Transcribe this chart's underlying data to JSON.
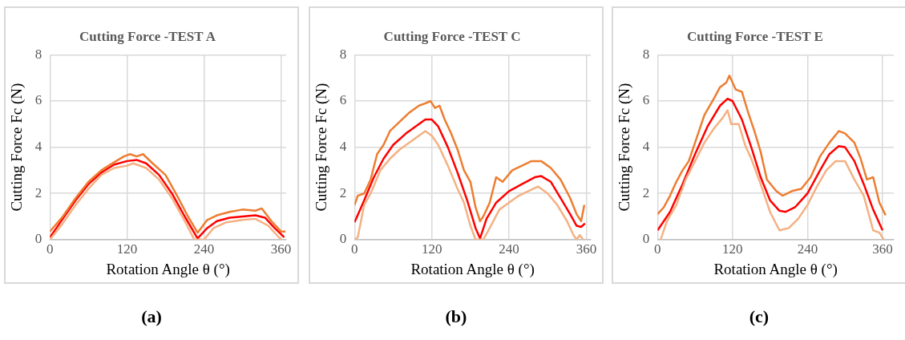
{
  "chart_data": [
    {
      "type": "line",
      "title": "Cutting Force -TEST A",
      "xlabel": "Rotation Angle θ (°)",
      "ylabel": "Cutting Force Fc (N)",
      "xlim": [
        0,
        368
      ],
      "xticks": [
        0,
        120,
        240,
        360
      ],
      "ylim": [
        0,
        8
      ],
      "yticks": [
        0,
        2,
        4,
        6,
        8
      ],
      "grid": true,
      "annotations": [
        "(a)"
      ],
      "series": [
        {
          "color": "#ed7d31",
          "x": [
            0,
            20,
            40,
            60,
            80,
            100,
            115,
            125,
            135,
            145,
            160,
            180,
            200,
            215,
            230,
            245,
            260,
            280,
            300,
            320,
            330,
            345,
            360,
            367
          ],
          "values": [
            0.35,
            1.0,
            1.8,
            2.5,
            3.0,
            3.35,
            3.6,
            3.7,
            3.6,
            3.7,
            3.3,
            2.8,
            1.8,
            1.0,
            0.3,
            0.85,
            1.05,
            1.2,
            1.3,
            1.25,
            1.35,
            0.8,
            0.35,
            0.35
          ]
        },
        {
          "color": "#f4b183",
          "x": [
            0,
            20,
            40,
            60,
            80,
            100,
            120,
            130,
            150,
            170,
            190,
            210,
            225,
            240,
            255,
            275,
            300,
            320,
            340,
            360
          ],
          "values": [
            0,
            0.7,
            1.5,
            2.2,
            2.8,
            3.1,
            3.2,
            3.3,
            3.1,
            2.6,
            1.8,
            0.8,
            0,
            0,
            0.5,
            0.75,
            0.85,
            0.9,
            0.6,
            0
          ]
        },
        {
          "color": "#ff0000",
          "x": [
            0,
            20,
            40,
            60,
            80,
            100,
            120,
            135,
            150,
            170,
            190,
            210,
            230,
            245,
            260,
            280,
            300,
            320,
            335,
            350,
            365
          ],
          "values": [
            0.1,
            0.9,
            1.7,
            2.4,
            2.9,
            3.25,
            3.4,
            3.45,
            3.3,
            2.8,
            2.0,
            1.0,
            0.05,
            0.5,
            0.8,
            0.95,
            1.0,
            1.05,
            0.95,
            0.5,
            0.1
          ]
        }
      ]
    },
    {
      "type": "line",
      "title": "Cutting Force -TEST C",
      "xlabel": "Rotation Angle θ (°)",
      "ylabel": "Cutting Force Fc (N)",
      "xlim": [
        0,
        367
      ],
      "xticks": [
        0,
        120,
        240,
        360
      ],
      "ylim": [
        0,
        8
      ],
      "yticks": [
        0,
        2,
        4,
        6,
        8
      ],
      "grid": true,
      "annotations": [
        "(b)"
      ],
      "series": [
        {
          "color": "#ed7d31",
          "x": [
            0,
            5,
            15,
            25,
            35,
            45,
            55,
            70,
            85,
            100,
            110,
            118,
            125,
            132,
            140,
            150,
            160,
            170,
            180,
            188,
            195,
            200,
            210,
            220,
            230,
            245,
            260,
            275,
            290,
            305,
            320,
            335,
            345,
            352,
            357
          ],
          "values": [
            1.5,
            1.9,
            2.0,
            2.6,
            3.7,
            4.1,
            4.7,
            5.1,
            5.5,
            5.8,
            5.9,
            6.0,
            5.7,
            5.8,
            5.2,
            4.6,
            3.9,
            3.0,
            2.5,
            1.4,
            0.8,
            1.0,
            1.6,
            2.7,
            2.5,
            3.0,
            3.2,
            3.4,
            3.4,
            3.1,
            2.6,
            1.8,
            1.1,
            0.8,
            1.5
          ]
        },
        {
          "color": "#f4b183",
          "x": [
            0,
            5,
            15,
            25,
            40,
            55,
            70,
            90,
            110,
            120,
            130,
            145,
            160,
            170,
            180,
            188,
            200,
            210,
            225,
            240,
            255,
            270,
            285,
            300,
            315,
            330,
            340,
            345,
            350,
            355
          ],
          "values": [
            0,
            0.1,
            1.5,
            2.0,
            3.0,
            3.5,
            3.9,
            4.3,
            4.7,
            4.5,
            4.1,
            3.2,
            2.2,
            1.6,
            0.6,
            0,
            0,
            0.5,
            1.3,
            1.6,
            1.9,
            2.1,
            2.3,
            2.0,
            1.5,
            0.8,
            0.2,
            0,
            0.2,
            0
          ]
        },
        {
          "color": "#ff0000",
          "x": [
            0,
            15,
            30,
            45,
            60,
            80,
            100,
            110,
            120,
            130,
            145,
            160,
            175,
            188,
            195,
            205,
            220,
            240,
            260,
            280,
            290,
            305,
            320,
            335,
            345,
            352,
            358
          ],
          "values": [
            0.75,
            1.7,
            2.7,
            3.5,
            4.1,
            4.6,
            5.0,
            5.2,
            5.2,
            4.9,
            4.0,
            2.9,
            1.7,
            0.5,
            0.05,
            0.9,
            1.6,
            2.1,
            2.4,
            2.7,
            2.75,
            2.5,
            1.8,
            1.1,
            0.6,
            0.55,
            0.7
          ]
        }
      ]
    },
    {
      "type": "line",
      "title": "Cutting Force -TEST E",
      "xlabel": "Rotation Angle θ (°)",
      "ylabel": "Cutting Force Fc (N)",
      "xlim": [
        0,
        378
      ],
      "xticks": [
        0,
        120,
        240,
        360
      ],
      "ylim": [
        0,
        8
      ],
      "yticks": [
        0,
        2,
        4,
        6,
        8
      ],
      "grid": true,
      "annotations": [
        "(c)"
      ],
      "series": [
        {
          "color": "#ed7d31",
          "x": [
            0,
            10,
            20,
            30,
            40,
            50,
            60,
            75,
            90,
            100,
            110,
            115,
            125,
            135,
            145,
            155,
            165,
            175,
            190,
            200,
            215,
            230,
            245,
            260,
            275,
            290,
            300,
            315,
            325,
            335,
            345,
            355,
            365
          ],
          "values": [
            1.1,
            1.4,
            1.9,
            2.5,
            3.0,
            3.4,
            4.2,
            5.4,
            6.1,
            6.6,
            6.8,
            7.1,
            6.5,
            6.4,
            5.5,
            4.7,
            3.8,
            2.6,
            2.1,
            1.9,
            2.1,
            2.2,
            2.7,
            3.6,
            4.2,
            4.7,
            4.6,
            4.2,
            3.5,
            2.6,
            2.7,
            1.6,
            1.05
          ]
        },
        {
          "color": "#f4b183",
          "x": [
            5,
            15,
            30,
            45,
            60,
            75,
            90,
            105,
            112,
            118,
            130,
            140,
            150,
            165,
            180,
            195,
            210,
            225,
            240,
            255,
            270,
            285,
            300,
            315,
            330,
            345,
            355,
            362
          ],
          "values": [
            0,
            0.8,
            1.5,
            2.6,
            3.4,
            4.2,
            4.8,
            5.3,
            5.6,
            5.0,
            5.0,
            4.1,
            3.5,
            2.4,
            1.2,
            0.4,
            0.5,
            0.9,
            1.5,
            2.3,
            3.0,
            3.4,
            3.4,
            2.6,
            1.9,
            0.4,
            0.3,
            0
          ]
        },
        {
          "color": "#ff0000",
          "x": [
            0,
            20,
            40,
            60,
            80,
            100,
            112,
            120,
            135,
            150,
            165,
            180,
            195,
            205,
            220,
            240,
            260,
            275,
            290,
            300,
            315,
            330,
            345,
            360
          ],
          "values": [
            0.4,
            1.2,
            2.4,
            3.7,
            4.9,
            5.8,
            6.1,
            6.0,
            5.2,
            4.0,
            2.7,
            1.7,
            1.25,
            1.2,
            1.4,
            2.0,
            3.0,
            3.7,
            4.05,
            4.0,
            3.4,
            2.4,
            1.3,
            0.4
          ]
        }
      ]
    }
  ]
}
